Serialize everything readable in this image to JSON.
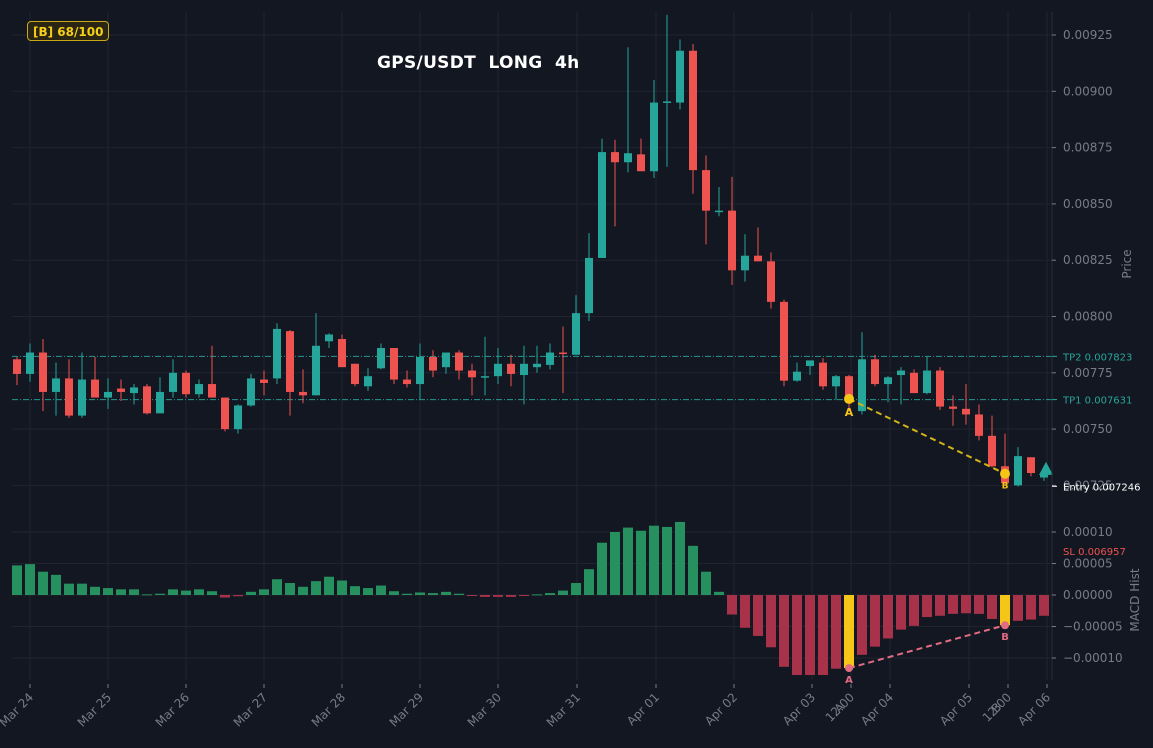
{
  "badge": {
    "label": "[B] 68/100",
    "color": "#f5cf1b"
  },
  "title": "GPS/USDT  LONG  4h",
  "colors": {
    "background": "#131722",
    "grid": "#1f2430",
    "up": "#26a69a",
    "down": "#ef5350",
    "macd_up": "#26915f",
    "macd_down": "#a8324a",
    "highlight": "#f5c518",
    "divergence_price": "#d4b417",
    "divergence_macd": "#e36b82",
    "tp_line": "#26a69a",
    "sl_text": "#ef5350",
    "entry_text": "#ffffff",
    "axis_text": "#787b86"
  },
  "chart_data": [
    {
      "type": "candlestick",
      "title": "GPS/USDT  LONG  4h",
      "ylabel": "Price",
      "ylim": [
        0.00714,
        0.00934
      ],
      "yticks": [
        "0.00725",
        "0.00750",
        "0.00775",
        "0.00800",
        "0.00825",
        "0.00850",
        "0.00875",
        "0.00900",
        "0.00925"
      ],
      "xticks": [
        "Mar 24",
        "Mar 25",
        "Mar 26",
        "Mar 27",
        "Mar 28",
        "Mar 29",
        "Mar 30",
        "Mar 31",
        "Apr 01",
        "Apr 02",
        "Apr 03",
        "A\n12:00",
        "Apr 04",
        "Apr 05",
        "B\n12:00",
        "Apr 06"
      ],
      "levels": [
        {
          "name": "TP2",
          "value": 0.007823,
          "label": "TP2 0.007823"
        },
        {
          "name": "TP1",
          "value": 0.007631,
          "label": "TP1 0.007631"
        },
        {
          "name": "Entry",
          "value": 0.007246,
          "label": "Entry 0.007246"
        },
        {
          "name": "SL",
          "value": 0.006957,
          "label": "SL 0.006957"
        }
      ],
      "divergence": {
        "A": {
          "index": 64,
          "price": 0.007634
        },
        "B": {
          "index": 76,
          "price": 0.007302
        }
      },
      "candles": [
        {
          "o": 0.00781,
          "h": 0.00782,
          "l": 0.007695,
          "c": 0.007745
        },
        {
          "o": 0.007745,
          "h": 0.00788,
          "l": 0.00771,
          "c": 0.00784
        },
        {
          "o": 0.00784,
          "h": 0.0079,
          "l": 0.00758,
          "c": 0.007665
        },
        {
          "o": 0.007665,
          "h": 0.007795,
          "l": 0.00756,
          "c": 0.007725
        },
        {
          "o": 0.007725,
          "h": 0.00781,
          "l": 0.00755,
          "c": 0.00756
        },
        {
          "o": 0.00756,
          "h": 0.00784,
          "l": 0.00755,
          "c": 0.00772
        },
        {
          "o": 0.00772,
          "h": 0.00782,
          "l": 0.00765,
          "c": 0.00764
        },
        {
          "o": 0.00764,
          "h": 0.007725,
          "l": 0.00759,
          "c": 0.007665
        },
        {
          "o": 0.00768,
          "h": 0.00772,
          "l": 0.007625,
          "c": 0.007665
        },
        {
          "o": 0.00766,
          "h": 0.0077,
          "l": 0.00761,
          "c": 0.007685
        },
        {
          "o": 0.00769,
          "h": 0.0077,
          "l": 0.007565,
          "c": 0.00757
        },
        {
          "o": 0.00757,
          "h": 0.00773,
          "l": 0.00757,
          "c": 0.007665
        },
        {
          "o": 0.007665,
          "h": 0.00781,
          "l": 0.00764,
          "c": 0.00775
        },
        {
          "o": 0.00775,
          "h": 0.00776,
          "l": 0.00764,
          "c": 0.007655
        },
        {
          "o": 0.007655,
          "h": 0.00772,
          "l": 0.00764,
          "c": 0.0077
        },
        {
          "o": 0.0077,
          "h": 0.00787,
          "l": 0.00764,
          "c": 0.00764
        },
        {
          "o": 0.00764,
          "h": 0.00764,
          "l": 0.00749,
          "c": 0.0075
        },
        {
          "o": 0.0075,
          "h": 0.00761,
          "l": 0.00748,
          "c": 0.007605
        },
        {
          "o": 0.007605,
          "h": 0.007745,
          "l": 0.0076,
          "c": 0.007725
        },
        {
          "o": 0.00772,
          "h": 0.00776,
          "l": 0.00765,
          "c": 0.007705
        },
        {
          "o": 0.007725,
          "h": 0.00797,
          "l": 0.0077,
          "c": 0.007945
        },
        {
          "o": 0.007935,
          "h": 0.00794,
          "l": 0.00756,
          "c": 0.007665
        },
        {
          "o": 0.007665,
          "h": 0.007765,
          "l": 0.007615,
          "c": 0.00765
        },
        {
          "o": 0.00765,
          "h": 0.008015,
          "l": 0.00765,
          "c": 0.00787
        },
        {
          "o": 0.00789,
          "h": 0.007925,
          "l": 0.00786,
          "c": 0.00792
        },
        {
          "o": 0.0079,
          "h": 0.00792,
          "l": 0.0078,
          "c": 0.007775
        },
        {
          "o": 0.00779,
          "h": 0.00779,
          "l": 0.00769,
          "c": 0.0077
        },
        {
          "o": 0.00769,
          "h": 0.00777,
          "l": 0.00767,
          "c": 0.007735
        },
        {
          "o": 0.00777,
          "h": 0.00788,
          "l": 0.007765,
          "c": 0.00786
        },
        {
          "o": 0.00786,
          "h": 0.00786,
          "l": 0.0077,
          "c": 0.00772
        },
        {
          "o": 0.00772,
          "h": 0.00776,
          "l": 0.007685,
          "c": 0.0077
        },
        {
          "o": 0.0077,
          "h": 0.00788,
          "l": 0.00763,
          "c": 0.00782
        },
        {
          "o": 0.00782,
          "h": 0.00785,
          "l": 0.00773,
          "c": 0.00776
        },
        {
          "o": 0.007775,
          "h": 0.00783,
          "l": 0.007745,
          "c": 0.00784
        },
        {
          "o": 0.00784,
          "h": 0.00785,
          "l": 0.00772,
          "c": 0.00776
        },
        {
          "o": 0.00776,
          "h": 0.00779,
          "l": 0.00765,
          "c": 0.00773
        },
        {
          "o": 0.00773,
          "h": 0.00791,
          "l": 0.00765,
          "c": 0.007735
        },
        {
          "o": 0.007735,
          "h": 0.00786,
          "l": 0.0077,
          "c": 0.00779
        },
        {
          "o": 0.00779,
          "h": 0.00783,
          "l": 0.00769,
          "c": 0.007745
        },
        {
          "o": 0.00774,
          "h": 0.00787,
          "l": 0.00761,
          "c": 0.00779
        },
        {
          "o": 0.007775,
          "h": 0.00787,
          "l": 0.00775,
          "c": 0.00779
        },
        {
          "o": 0.007785,
          "h": 0.00788,
          "l": 0.007765,
          "c": 0.00784
        },
        {
          "o": 0.00784,
          "h": 0.007955,
          "l": 0.00766,
          "c": 0.007835
        },
        {
          "o": 0.00783,
          "h": 0.008095,
          "l": 0.00783,
          "c": 0.008015
        },
        {
          "o": 0.008015,
          "h": 0.00837,
          "l": 0.00798,
          "c": 0.00826
        },
        {
          "o": 0.00826,
          "h": 0.00879,
          "l": 0.00826,
          "c": 0.00873
        },
        {
          "o": 0.00873,
          "h": 0.008785,
          "l": 0.0084,
          "c": 0.008685
        },
        {
          "o": 0.008685,
          "h": 0.009195,
          "l": 0.00864,
          "c": 0.008725
        },
        {
          "o": 0.00872,
          "h": 0.00879,
          "l": 0.00865,
          "c": 0.008645
        },
        {
          "o": 0.008645,
          "h": 0.00905,
          "l": 0.008615,
          "c": 0.00895
        },
        {
          "o": 0.00895,
          "h": 0.00934,
          "l": 0.008665,
          "c": 0.008955
        },
        {
          "o": 0.00895,
          "h": 0.00923,
          "l": 0.00892,
          "c": 0.00918
        },
        {
          "o": 0.00918,
          "h": 0.00921,
          "l": 0.008545,
          "c": 0.00865
        },
        {
          "o": 0.00865,
          "h": 0.008715,
          "l": 0.00832,
          "c": 0.00847
        },
        {
          "o": 0.008465,
          "h": 0.008575,
          "l": 0.008445,
          "c": 0.00847
        },
        {
          "o": 0.00847,
          "h": 0.00862,
          "l": 0.00814,
          "c": 0.008205
        },
        {
          "o": 0.008205,
          "h": 0.008365,
          "l": 0.008155,
          "c": 0.00827
        },
        {
          "o": 0.00827,
          "h": 0.008395,
          "l": 0.008245,
          "c": 0.008245
        },
        {
          "o": 0.008245,
          "h": 0.008285,
          "l": 0.008035,
          "c": 0.008065
        },
        {
          "o": 0.008065,
          "h": 0.008075,
          "l": 0.00769,
          "c": 0.007715
        },
        {
          "o": 0.007715,
          "h": 0.007795,
          "l": 0.00771,
          "c": 0.007755
        },
        {
          "o": 0.00778,
          "h": 0.0078,
          "l": 0.00774,
          "c": 0.007805
        },
        {
          "o": 0.007795,
          "h": 0.007815,
          "l": 0.007675,
          "c": 0.00769
        },
        {
          "o": 0.00769,
          "h": 0.00774,
          "l": 0.00763,
          "c": 0.007735
        },
        {
          "o": 0.007735,
          "h": 0.00774,
          "l": 0.00758,
          "c": 0.00763
        },
        {
          "o": 0.00758,
          "h": 0.00793,
          "l": 0.007565,
          "c": 0.00781
        },
        {
          "o": 0.00781,
          "h": 0.00783,
          "l": 0.00769,
          "c": 0.0077
        },
        {
          "o": 0.0077,
          "h": 0.007735,
          "l": 0.00762,
          "c": 0.00773
        },
        {
          "o": 0.00774,
          "h": 0.007775,
          "l": 0.00761,
          "c": 0.00776
        },
        {
          "o": 0.00775,
          "h": 0.007765,
          "l": 0.00766,
          "c": 0.00766
        },
        {
          "o": 0.00766,
          "h": 0.00782,
          "l": 0.007655,
          "c": 0.00776
        },
        {
          "o": 0.00776,
          "h": 0.007775,
          "l": 0.007585,
          "c": 0.0076
        },
        {
          "o": 0.0076,
          "h": 0.00765,
          "l": 0.007515,
          "c": 0.00759
        },
        {
          "o": 0.00759,
          "h": 0.0077,
          "l": 0.00752,
          "c": 0.007565
        },
        {
          "o": 0.007565,
          "h": 0.00761,
          "l": 0.00745,
          "c": 0.00747
        },
        {
          "o": 0.00747,
          "h": 0.00756,
          "l": 0.00733,
          "c": 0.007335
        },
        {
          "o": 0.007335,
          "h": 0.00748,
          "l": 0.007255,
          "c": 0.00726
        },
        {
          "o": 0.00725,
          "h": 0.00742,
          "l": 0.007245,
          "c": 0.00738
        },
        {
          "o": 0.007375,
          "h": 0.007375,
          "l": 0.00729,
          "c": 0.007305
        },
        {
          "o": 0.007285,
          "h": 0.007335,
          "l": 0.00727,
          "c": 0.0073
        }
      ]
    },
    {
      "type": "bar",
      "title": "MACD Hist",
      "ylabel": "MACD Hist",
      "ylim": [
        -0.000134,
        0.0001
      ],
      "yticks": [
        "-0.00010",
        "-0.00005",
        "0.00000",
        "0.00005",
        "0.00010"
      ],
      "highlight_indices": [
        64,
        76
      ],
      "divergence": {
        "A": {
          "index": 64,
          "value": -0.000116
        },
        "B": {
          "index": 76,
          "value": -4.8e-05
        }
      },
      "values": [
        4.7e-05,
        4.9e-05,
        3.7e-05,
        3.2e-05,
        1.8e-05,
        1.8e-05,
        1.3e-05,
        1.1e-05,
        9e-06,
        9e-06,
        1e-06,
        2e-06,
        9e-06,
        7e-06,
        9e-06,
        6e-06,
        -4e-06,
        -2e-06,
        5e-06,
        9e-06,
        2.5e-05,
        1.9e-05,
        1.3e-05,
        2.2e-05,
        2.9e-05,
        2.3e-05,
        1.4e-05,
        1.1e-05,
        1.5e-05,
        6e-06,
        2e-06,
        4e-06,
        3e-06,
        5e-06,
        2e-06,
        -1e-06,
        -3e-06,
        -3e-06,
        -3e-06,
        -1e-06,
        1e-06,
        3e-06,
        7e-06,
        1.9e-05,
        4.1e-05,
        8.3e-05,
        0.0001,
        0.000107,
        0.000102,
        0.00011,
        0.000108,
        0.000116,
        7.8e-05,
        3.7e-05,
        5e-06,
        -3.1e-05,
        -5.2e-05,
        -6.5e-05,
        -8.3e-05,
        -0.000114,
        -0.000127,
        -0.000127,
        -0.000127,
        -0.000117,
        -0.000116,
        -9.5e-05,
        -8.2e-05,
        -6.9e-05,
        -5.5e-05,
        -4.9e-05,
        -3.5e-05,
        -3.3e-05,
        -3e-05,
        -2.9e-05,
        -3e-05,
        -3.8e-05,
        -4.8e-05,
        -4.1e-05,
        -3.9e-05,
        -3.3e-05
      ]
    }
  ],
  "labels": {
    "divergence_a": "A",
    "divergence_b": "B",
    "price_axis": "Price",
    "macd_axis": "MACD Hist"
  }
}
